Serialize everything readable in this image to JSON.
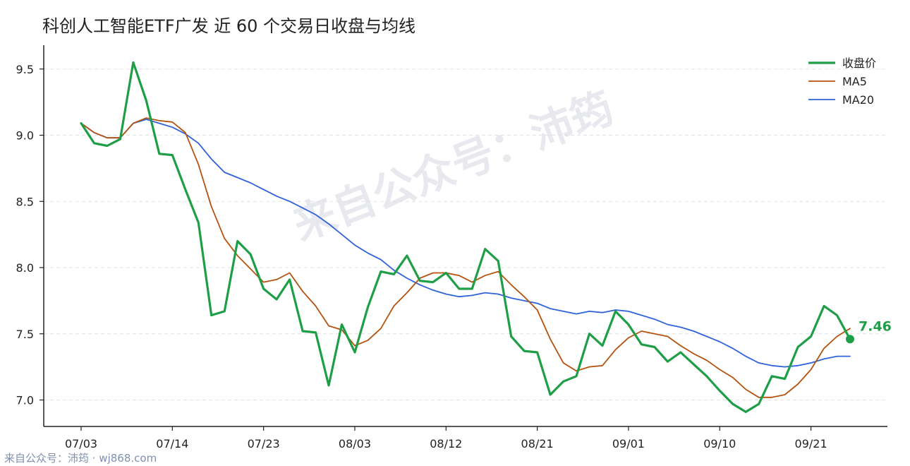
{
  "colors": {
    "close": "#1e9e46",
    "ma5": "#b4530f",
    "ma20": "#2f62d8"
  },
  "watermark": "来自公众号：沛筠",
  "footer": "来自公众号：沛筠 · wj868.com",
  "chart_data": {
    "type": "line",
    "title": "科创人工智能ETF广发 近 60 个交易日收盘与均线",
    "xlabel": "",
    "ylabel": "",
    "ylim": [
      6.8,
      9.68
    ],
    "yticks": [
      "7.0",
      "7.5",
      "8.0",
      "8.5",
      "9.0",
      "9.5"
    ],
    "grid": "horizontal",
    "legend_position": "top-right",
    "x_tick_labels": [
      {
        "label": "07/03",
        "index": 0
      },
      {
        "label": "07/14",
        "index": 7
      },
      {
        "label": "07/23",
        "index": 14
      },
      {
        "label": "08/03",
        "index": 21
      },
      {
        "label": "08/12",
        "index": 28
      },
      {
        "label": "08/21",
        "index": 35
      },
      {
        "label": "09/01",
        "index": 42
      },
      {
        "label": "09/10",
        "index": 49
      },
      {
        "label": "09/21",
        "index": 56
      }
    ],
    "last_value_label": "7.46",
    "series": [
      {
        "name": "收盘价",
        "key": "close",
        "values": [
          9.09,
          8.94,
          8.92,
          8.97,
          9.55,
          9.26,
          8.86,
          8.85,
          8.59,
          8.34,
          7.64,
          7.67,
          8.2,
          8.1,
          7.84,
          7.76,
          7.91,
          7.52,
          7.51,
          7.11,
          7.57,
          7.36,
          7.7,
          7.97,
          7.95,
          8.09,
          7.9,
          7.89,
          7.96,
          7.84,
          7.84,
          8.14,
          8.05,
          7.48,
          7.37,
          7.36,
          7.04,
          7.14,
          7.18,
          7.5,
          7.41,
          7.67,
          7.57,
          7.42,
          7.4,
          7.29,
          7.36,
          7.27,
          7.18,
          7.07,
          6.97,
          6.91,
          6.97,
          7.18,
          7.16,
          7.4,
          7.48,
          7.71,
          7.64,
          7.46
        ]
      },
      {
        "name": "MA5",
        "key": "ma5",
        "values": [
          9.09,
          9.02,
          8.98,
          8.98,
          9.09,
          9.13,
          9.11,
          9.1,
          9.02,
          8.78,
          8.46,
          8.22,
          8.09,
          7.99,
          7.89,
          7.91,
          7.96,
          7.82,
          7.71,
          7.56,
          7.53,
          7.41,
          7.45,
          7.54,
          7.71,
          7.81,
          7.92,
          7.96,
          7.96,
          7.94,
          7.89,
          7.94,
          7.97,
          7.87,
          7.78,
          7.68,
          7.46,
          7.28,
          7.22,
          7.25,
          7.26,
          7.38,
          7.47,
          7.52,
          7.5,
          7.48,
          7.41,
          7.35,
          7.3,
          7.23,
          7.17,
          7.08,
          7.02,
          7.02,
          7.04,
          7.12,
          7.23,
          7.39,
          7.48,
          7.54
        ]
      },
      {
        "name": "MA20",
        "key": "ma20",
        "values": [
          9.09,
          9.02,
          8.98,
          8.98,
          9.09,
          9.12,
          9.09,
          9.06,
          9.01,
          8.94,
          8.82,
          8.72,
          8.68,
          8.64,
          8.59,
          8.54,
          8.5,
          8.45,
          8.4,
          8.33,
          8.25,
          8.17,
          8.11,
          8.06,
          7.98,
          7.92,
          7.87,
          7.83,
          7.8,
          7.78,
          7.79,
          7.81,
          7.8,
          7.77,
          7.75,
          7.73,
          7.69,
          7.67,
          7.65,
          7.67,
          7.66,
          7.68,
          7.67,
          7.64,
          7.61,
          7.57,
          7.55,
          7.52,
          7.48,
          7.44,
          7.39,
          7.33,
          7.28,
          7.26,
          7.25,
          7.26,
          7.28,
          7.31,
          7.33,
          7.33
        ]
      }
    ]
  }
}
